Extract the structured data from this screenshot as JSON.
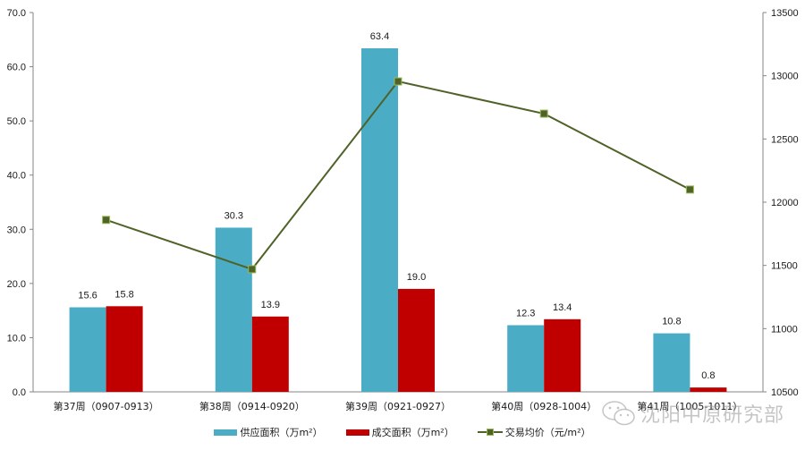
{
  "chart_data": {
    "type": "bar+line",
    "title": "",
    "categories": [
      "第37周（0907-0913）",
      "第38周（0914-0920）",
      "第39周（0921-0927）",
      "第40周（0928-1004）",
      "第41周（1005-1011）"
    ],
    "series": [
      {
        "name": "供应面积（万m²）",
        "type": "bar",
        "axis": "left",
        "color": "#4bacc6",
        "values": [
          15.6,
          30.3,
          63.4,
          12.3,
          10.8
        ]
      },
      {
        "name": "成交面积（万m²）",
        "type": "bar",
        "axis": "left",
        "color": "#c00000",
        "values": [
          15.8,
          13.9,
          19.0,
          13.4,
          0.8
        ]
      },
      {
        "name": "交易均价（元/m²）",
        "type": "line",
        "axis": "right",
        "color": "#4f6228",
        "marker": "square",
        "values": [
          11860,
          11470,
          12955,
          12700,
          12100
        ]
      }
    ],
    "y_left": {
      "min": 0,
      "max": 70,
      "ticks": [
        "0.0",
        "10.0",
        "20.0",
        "30.0",
        "40.0",
        "50.0",
        "60.0",
        "70.0"
      ]
    },
    "y_right": {
      "min": 10500,
      "max": 13500,
      "ticks": [
        "10500",
        "11000",
        "11500",
        "12000",
        "12500",
        "13000",
        "13500"
      ]
    },
    "xlabel": "",
    "ylabel": "",
    "grid": false,
    "legend_position": "bottom"
  },
  "legend": {
    "supply": "供应面积（万m²）",
    "deal": "成交面积（万m²）",
    "price": "交易均价（元/m²）"
  },
  "watermark": {
    "text": "沈阳中原研究部",
    "icon": "wechat-icon"
  }
}
